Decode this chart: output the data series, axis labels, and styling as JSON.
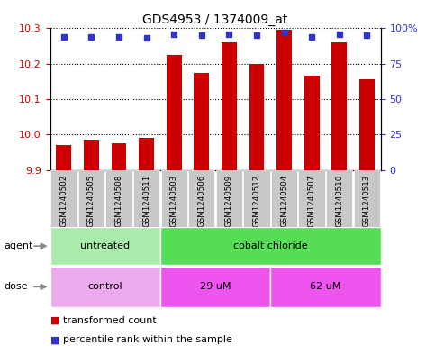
{
  "title": "GDS4953 / 1374009_at",
  "samples": [
    "GSM1240502",
    "GSM1240505",
    "GSM1240508",
    "GSM1240511",
    "GSM1240503",
    "GSM1240506",
    "GSM1240509",
    "GSM1240512",
    "GSM1240504",
    "GSM1240507",
    "GSM1240510",
    "GSM1240513"
  ],
  "bar_values": [
    9.97,
    9.985,
    9.975,
    9.99,
    10.225,
    10.175,
    10.26,
    10.2,
    10.295,
    10.165,
    10.26,
    10.155
  ],
  "percentile_values": [
    94,
    94,
    94,
    93,
    96,
    95,
    96,
    95,
    97,
    94,
    96,
    95
  ],
  "bar_color": "#cc0000",
  "percentile_color": "#3333cc",
  "ylim_left": [
    9.9,
    10.3
  ],
  "ylim_right": [
    0,
    100
  ],
  "yticks_left": [
    9.9,
    10.0,
    10.1,
    10.2,
    10.3
  ],
  "yticks_right": [
    0,
    25,
    50,
    75,
    100
  ],
  "ytick_labels_right": [
    "0",
    "25",
    "50",
    "75",
    "100%"
  ],
  "agent_groups": [
    {
      "label": "untreated",
      "start": 0,
      "end": 4,
      "color": "#aaeaaa"
    },
    {
      "label": "cobalt chloride",
      "start": 4,
      "end": 12,
      "color": "#55dd55"
    }
  ],
  "dose_groups": [
    {
      "label": "control",
      "start": 0,
      "end": 4,
      "color": "#eeaaee"
    },
    {
      "label": "29 uM",
      "start": 4,
      "end": 8,
      "color": "#ee55ee"
    },
    {
      "label": "62 uM",
      "start": 8,
      "end": 12,
      "color": "#ee55ee"
    }
  ],
  "legend_bar_label": "transformed count",
  "legend_dot_label": "percentile rank within the sample",
  "bar_width": 0.55,
  "background_color": "#ffffff",
  "grid_color": "#000000",
  "tick_label_color_left": "#cc0000",
  "tick_label_color_right": "#3333cc",
  "percentile_marker_size": 5,
  "base_value": 9.9,
  "xtick_bg_color": "#c8c8c8",
  "agent_label_color": "#000000",
  "dose_label_color": "#000000",
  "arrow_color": "#888888"
}
